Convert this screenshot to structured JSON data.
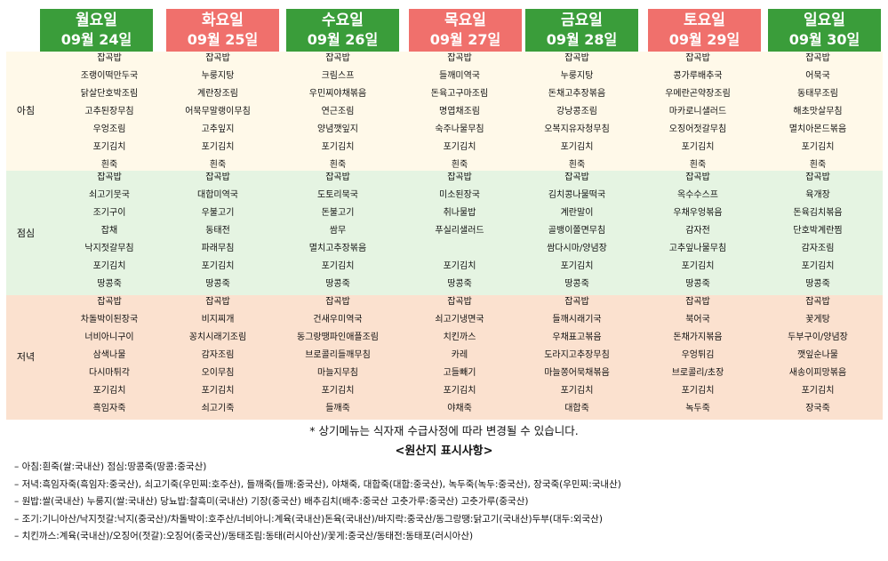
{
  "days": [
    {
      "day": "월요일",
      "date": "09월 24일",
      "color": "green"
    },
    {
      "day": "화요일",
      "date": "09월 25일",
      "color": "red"
    },
    {
      "day": "수요일",
      "date": "09월 26일",
      "color": "green"
    },
    {
      "day": "목요일",
      "date": "09월 27일",
      "color": "red"
    },
    {
      "day": "금요일",
      "date": "09월 28일",
      "color": "green"
    },
    {
      "day": "토요일",
      "date": "09월 29일",
      "color": "red"
    },
    {
      "day": "일요일",
      "date": "09월 30일",
      "color": "green"
    }
  ],
  "colors": {
    "green": "#3a9d3a",
    "red": "#f0706c",
    "breakfast_bg": "#fff9e9",
    "lunch_bg": "#e5f4e2",
    "dinner_bg": "#fbe1cf"
  },
  "meals": [
    {
      "label": "아침",
      "menus": [
        [
          "잡곡밥",
          "조랭이떡만두국",
          "닭살단호박조림",
          "고추된장무침",
          "우엉조림",
          "포기김치",
          "흰죽"
        ],
        [
          "잡곡밥",
          "누룽지탕",
          "계란장조림",
          "어묵무말랭이무침",
          "고추잎지",
          "포기김치",
          "흰죽"
        ],
        [
          "잡곡밥",
          "크림스프",
          "우민찌야채볶음",
          "연근조림",
          "양념깻잎지",
          "포기김치",
          "흰죽"
        ],
        [
          "잡곡밥",
          "들깨미역국",
          "돈육고구마조림",
          "명엽채조림",
          "숙주나물무침",
          "포기김치",
          "흰죽"
        ],
        [
          "잡곡밥",
          "누룽지탕",
          "돈채고추장볶음",
          "강낭콩조림",
          "오복지유자청무침",
          "포기김치",
          "흰죽"
        ],
        [
          "잡곡밥",
          "콩가루배추국",
          "우메란곤약장조림",
          "마카로니샐러드",
          "오징어젓갈무침",
          "포기김치",
          "흰죽"
        ],
        [
          "잡곡밥",
          "어묵국",
          "동태무조림",
          "해초맛살무침",
          "멸치아몬드볶음",
          "포기김치",
          "흰죽"
        ]
      ]
    },
    {
      "label": "점심",
      "menus": [
        [
          "잡곡밥",
          "쇠고기뭇국",
          "조기구이",
          "잡채",
          "낙지젓갈무침",
          "포기김치",
          "땅콩죽"
        ],
        [
          "잡곡밥",
          "대합미역국",
          "우불고기",
          "동태전",
          "파래무침",
          "포기김치",
          "땅콩죽"
        ],
        [
          "잡곡밥",
          "도토리묵국",
          "돈불고기",
          "쌈무",
          "멸치고추장볶음",
          "포기김치",
          "땅콩죽"
        ],
        [
          "잡곡밥",
          "미소된장국",
          "취나물밥",
          "푸실리샐러드",
          "",
          "포기김치",
          "땅콩죽"
        ],
        [
          "잡곡밥",
          "김치콩나물떡국",
          "계란말이",
          "골뱅이쫄면무침",
          "쌈다시마/양념장",
          "포기김치",
          "땅콩죽"
        ],
        [
          "잡곡밥",
          "옥수수스프",
          "우채우엉볶음",
          "감자전",
          "고추잎나물무침",
          "포기김치",
          "땅콩죽"
        ],
        [
          "잡곡밥",
          "육개장",
          "돈육김치볶음",
          "단호박계란찜",
          "감자조림",
          "포기김치",
          "땅콩죽"
        ]
      ]
    },
    {
      "label": "저녁",
      "menus": [
        [
          "잡곡밥",
          "차돌박이된장국",
          "너비아니구이",
          "삼색나물",
          "다시마튀각",
          "포기김치",
          "흑임자죽"
        ],
        [
          "잡곡밥",
          "비지찌개",
          "꽁치시래기조림",
          "감자조림",
          "오이무침",
          "포기김치",
          "쇠고기죽"
        ],
        [
          "잡곡밥",
          "건새우미역국",
          "동그랑땡파인애플조림",
          "브로콜리들깨무침",
          "마늘지무침",
          "포기김치",
          "들깨죽"
        ],
        [
          "잡곡밥",
          "쇠고기냉면국",
          "치킨까스",
          "카레",
          "고들빼기",
          "포기김치",
          "야채죽"
        ],
        [
          "잡곡밥",
          "들깨시래기국",
          "우채표고볶음",
          "도라지고추장무침",
          "마늘쫑어묵채볶음",
          "포기김치",
          "대합죽"
        ],
        [
          "잡곡밥",
          "북어국",
          "돈채가지볶음",
          "우엉튀김",
          "브로콜리/초장",
          "포기김치",
          "녹두죽"
        ],
        [
          "잡곡밥",
          "꽃게탕",
          "두부구이/양념장",
          "깻잎순나물",
          "새송이피망볶음",
          "포기김치",
          "장국죽"
        ]
      ]
    }
  ],
  "note": "* 상기메뉴는 식자재 수급사정에 따라 변경될 수 있습니다.",
  "origin_title": "<원산지 표시사항>",
  "origin_lines": [
    "– 아침:흰죽(쌀:국내산) 점심:땅콩죽(땅콩:중국산)",
    "– 저녁:흑임자죽(흑임자:중국산), 쇠고기죽(우민찌:호주산), 들깨죽(들깨:중국산), 야채죽, 대합죽(대합:중국산), 녹두죽(녹두:중국산), 장국죽(우민찌:국내산)",
    "– 원밥:쌀(국내산) 누룽지(쌀:국내산) 당뇨밥:찰흑미(국내산) 기장(중국산) 배추김치(배추:중국산 고춧가루:중국산) 고춧가루(중국산)",
    "– 조기:기니아산/낙지젓갈:낙지(중국산)/차돌박이:호주산/너비아니:계육(국내산)돈육(국내산)/바지락:중국산/동그랑땡:닭고기(국내산)두부(대두:외국산)",
    "– 치킨까스:계육(국내산)/오징어(젓갈):오징어(중국산)/동태조림:동태(러시아산)/꽃게:중국산/동태전:동태포(러시아산)"
  ]
}
